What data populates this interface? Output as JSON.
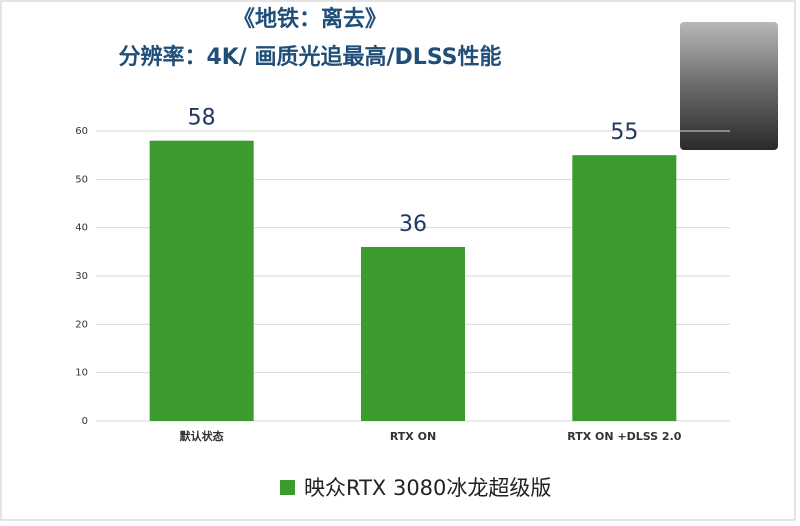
{
  "chart_data": {
    "type": "bar",
    "title": "《地铁：离去》",
    "subtitle": "分辨率：4K/ 画质光追最高/DLSS性能",
    "categories": [
      "默认状态",
      "RTX ON",
      "RTX ON +DLSS 2.0"
    ],
    "series": [
      {
        "name": "映众RTX 3080冰龙超级版",
        "color": "#3b9b2f",
        "values": [
          58,
          36,
          55
        ]
      }
    ],
    "ylim": [
      0,
      60
    ],
    "yticks": [
      0,
      10,
      20,
      30,
      40,
      50,
      60
    ],
    "grid": true,
    "legend": "bottom"
  }
}
